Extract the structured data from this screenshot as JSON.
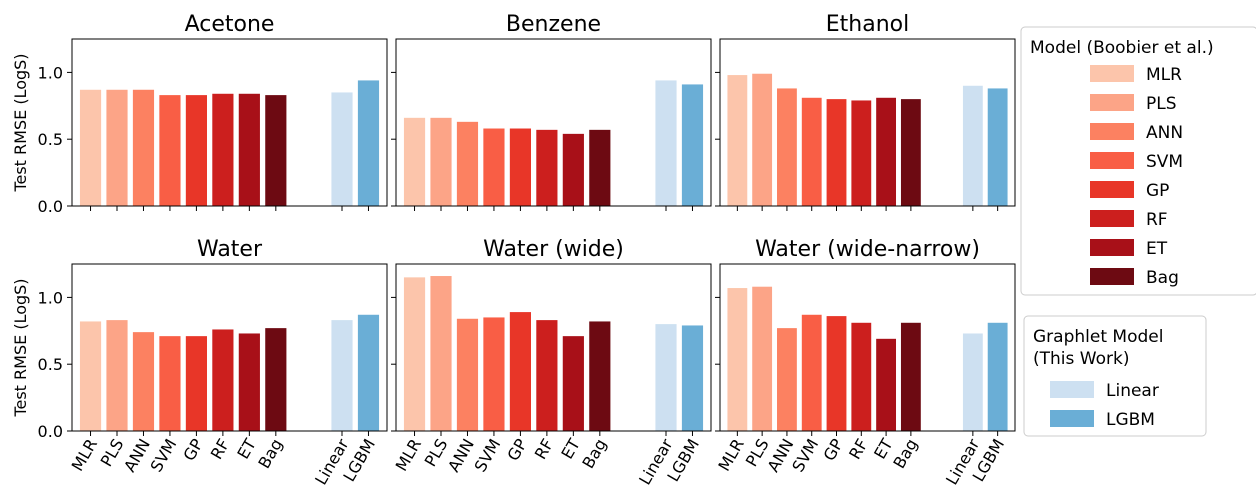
{
  "figure": {
    "ylabel": "Test RMSE (LogS)"
  },
  "chart_data": [
    {
      "type": "bar",
      "title": "Acetone",
      "ylabel": "Test RMSE (LogS)",
      "ylim": [
        0,
        1.25
      ],
      "yticks": [
        "0.0",
        "0.5",
        "1.0"
      ],
      "categories": [
        "MLR",
        "PLS",
        "ANN",
        "SVM",
        "GP",
        "RF",
        "ET",
        "Bag",
        "Linear",
        "LGBM"
      ],
      "values": [
        0.87,
        0.87,
        0.87,
        0.83,
        0.83,
        0.84,
        0.84,
        0.83,
        0.85,
        0.94
      ],
      "show_xticklabels": false
    },
    {
      "type": "bar",
      "title": "Benzene",
      "ylabel": "",
      "ylim": [
        0,
        1.25
      ],
      "categories": [
        "MLR",
        "PLS",
        "ANN",
        "SVM",
        "GP",
        "RF",
        "ET",
        "Bag",
        "Linear",
        "LGBM"
      ],
      "values": [
        0.66,
        0.66,
        0.63,
        0.58,
        0.58,
        0.57,
        0.54,
        0.57,
        0.94,
        0.91
      ],
      "show_xticklabels": false
    },
    {
      "type": "bar",
      "title": "Ethanol",
      "ylabel": "",
      "ylim": [
        0,
        1.25
      ],
      "categories": [
        "MLR",
        "PLS",
        "ANN",
        "SVM",
        "GP",
        "RF",
        "ET",
        "Bag",
        "Linear",
        "LGBM"
      ],
      "values": [
        0.98,
        0.99,
        0.88,
        0.81,
        0.8,
        0.79,
        0.81,
        0.8,
        0.9,
        0.88
      ],
      "show_xticklabels": false
    },
    {
      "type": "bar",
      "title": "Water",
      "ylabel": "Test RMSE (LogS)",
      "ylim": [
        0,
        1.25
      ],
      "yticks": [
        "0.0",
        "0.5",
        "1.0"
      ],
      "categories": [
        "MLR",
        "PLS",
        "ANN",
        "SVM",
        "GP",
        "RF",
        "ET",
        "Bag",
        "Linear",
        "LGBM"
      ],
      "values": [
        0.82,
        0.83,
        0.74,
        0.71,
        0.71,
        0.76,
        0.73,
        0.77,
        0.83,
        0.87
      ],
      "show_xticklabels": true
    },
    {
      "type": "bar",
      "title": "Water (wide)",
      "ylabel": "",
      "ylim": [
        0,
        1.25
      ],
      "categories": [
        "MLR",
        "PLS",
        "ANN",
        "SVM",
        "GP",
        "RF",
        "ET",
        "Bag",
        "Linear",
        "LGBM"
      ],
      "values": [
        1.15,
        1.16,
        0.84,
        0.85,
        0.89,
        0.83,
        0.71,
        0.82,
        0.8,
        0.79
      ],
      "show_xticklabels": true
    },
    {
      "type": "bar",
      "title": "Water (wide-narrow)",
      "ylabel": "",
      "ylim": [
        0,
        1.25
      ],
      "categories": [
        "MLR",
        "PLS",
        "ANN",
        "SVM",
        "GP",
        "RF",
        "ET",
        "Bag",
        "Linear",
        "LGBM"
      ],
      "values": [
        1.07,
        1.08,
        0.77,
        0.87,
        0.86,
        0.81,
        0.69,
        0.81,
        0.73,
        0.81
      ],
      "show_xticklabels": true
    }
  ],
  "colors": {
    "MLR": "#fcc5ab",
    "PLS": "#fca487",
    "ANN": "#fc8161",
    "SVM": "#f95e45",
    "GP": "#e83628",
    "RF": "#cc1f1e",
    "ET": "#a81018",
    "Bag": "#6d0a12",
    "Linear": "#cde0f1",
    "LGBM": "#6aaed6"
  },
  "legend_boobier": {
    "title": "Model (Boobier et al.)",
    "items": [
      "MLR",
      "PLS",
      "ANN",
      "SVM",
      "GP",
      "RF",
      "ET",
      "Bag"
    ]
  },
  "legend_graphlet": {
    "title_line1": "Graphlet Model",
    "title_line2": "(This Work)",
    "items": [
      "Linear",
      "LGBM"
    ]
  }
}
